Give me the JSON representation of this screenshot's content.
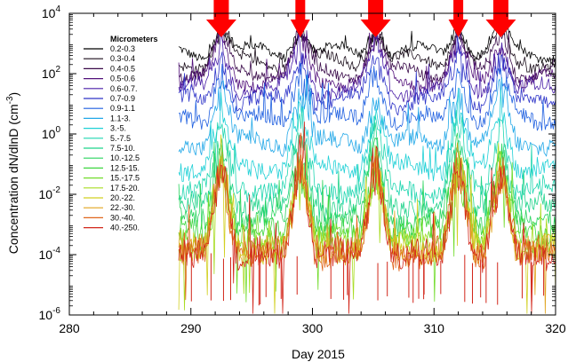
{
  "chart_data": {
    "type": "line",
    "title": "",
    "xlabel": "Day 2015",
    "ylabel": "Concentration dN/dlnD (cm⁻³)",
    "ylabel_main": "Concentration dN/dlnD (cm",
    "ylabel_exp": "-3",
    "ylabel_close": ")",
    "xlim": [
      280,
      320
    ],
    "ylim": [
      1e-06,
      10000.0
    ],
    "yscale": "log",
    "x_ticks": [
      280,
      290,
      300,
      310,
      320
    ],
    "y_ticks": [
      {
        "base": "10",
        "exp": "-6",
        "value": 1e-06
      },
      {
        "base": "10",
        "exp": "-4",
        "value": 0.0001
      },
      {
        "base": "10",
        "exp": "-2",
        "value": 0.01
      },
      {
        "base": "10",
        "exp": "0",
        "value": 1
      },
      {
        "base": "10",
        "exp": "2",
        "value": 100.0
      },
      {
        "base": "10",
        "exp": "4",
        "value": 10000.0
      }
    ],
    "grid": false,
    "legend_title": "Micrometers",
    "legend_position": "top-left",
    "data_start_day": 289,
    "data_end_day": 320,
    "event_arrows_days": [
      292.5,
      299,
      305.2,
      312,
      315.5
    ],
    "event_arrow_color": "#ff0000",
    "series": [
      {
        "name": "0.2-0.3",
        "color": "#000000",
        "base": 500
      },
      {
        "name": "0.3-0.4",
        "color": "#1c0f1c",
        "base": 250
      },
      {
        "name": "0.4-0.5",
        "color": "#3a0b4a",
        "base": 120
      },
      {
        "name": "0.5-0.6",
        "color": "#52117a",
        "base": 60
      },
      {
        "name": "0.6-0.7.",
        "color": "#4a1fa8",
        "base": 30
      },
      {
        "name": "0.7-0.9",
        "color": "#2e34c8",
        "base": 12
      },
      {
        "name": "0.9-1.1",
        "color": "#1e5fe0",
        "base": 3
      },
      {
        "name": "1.1-3.",
        "color": "#22a8e8",
        "base": 0.5
      },
      {
        "name": "3.-5.",
        "color": "#1fd0d6",
        "base": 0.08
      },
      {
        "name": "5.-7.5",
        "color": "#1fd6b0",
        "base": 0.015
      },
      {
        "name": "7.5-10.",
        "color": "#1fd38a",
        "base": 0.004
      },
      {
        "name": "10.-12.5",
        "color": "#2ad45e",
        "base": 0.0013
      },
      {
        "name": "12.5-15.",
        "color": "#3ed640",
        "base": 0.0006
      },
      {
        "name": "15.-17.5",
        "color": "#72dc2c",
        "base": 0.00032
      },
      {
        "name": "17.5-20.",
        "color": "#a8dc22",
        "base": 0.0002
      },
      {
        "name": "20.-22.",
        "color": "#d2d022",
        "base": 0.00016
      },
      {
        "name": "22.-30.",
        "color": "#e0a41e",
        "base": 0.00013
      },
      {
        "name": "30.-40.",
        "color": "#e0661c",
        "base": 0.00011
      },
      {
        "name": "40.-250.",
        "color": "#d2261a",
        "base": 0.0001
      }
    ]
  }
}
